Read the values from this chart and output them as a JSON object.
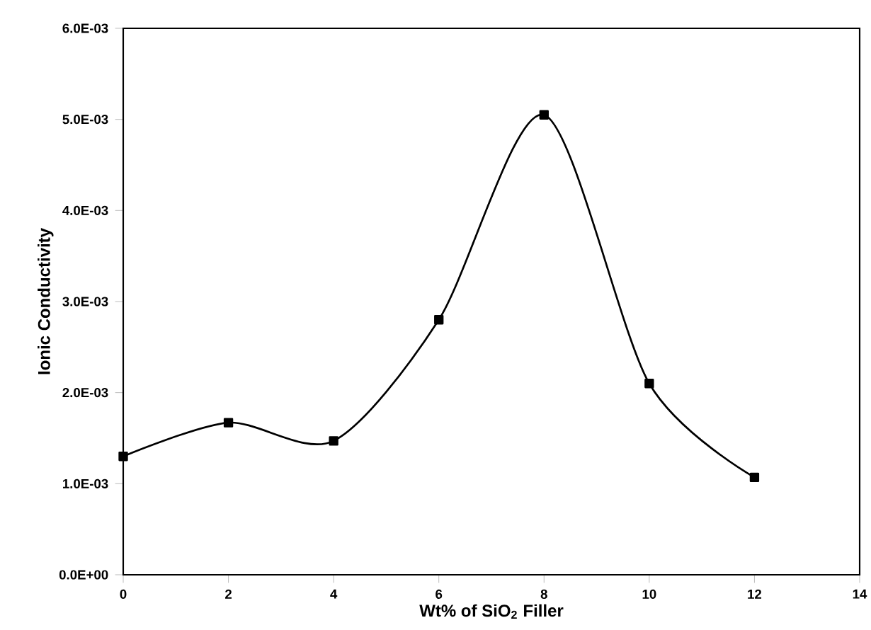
{
  "chart_data": {
    "type": "line",
    "xlabel": "Wt% of SiO$_{2}$ Filler",
    "ylabel": "Ionic Conductivity",
    "x": [
      0,
      2,
      4,
      6,
      8,
      10,
      12
    ],
    "series": [
      {
        "color": "#000000",
        "values": [
          0.0013,
          0.00167,
          0.00147,
          0.0028,
          0.00505,
          0.0021,
          0.00107
        ]
      }
    ],
    "xlim": [
      0,
      14
    ],
    "xticks": [
      0,
      2,
      4,
      6,
      8,
      10,
      12,
      14
    ],
    "ylim": [
      0,
      0.006
    ],
    "yticks": [
      {
        "value": 0,
        "label": "0.0E+00"
      },
      {
        "value": 0.001,
        "label": "1.0E-03"
      },
      {
        "value": 0.002,
        "label": "2.0E-03"
      },
      {
        "value": 0.003,
        "label": "3.0E-03"
      },
      {
        "value": 0.004,
        "label": "4.0E-03"
      },
      {
        "value": 0.005,
        "label": "5.0E-03"
      },
      {
        "value": 0.006,
        "label": "6.0E-03"
      }
    ],
    "grid": false,
    "marker": "square",
    "line_style": "solid"
  }
}
